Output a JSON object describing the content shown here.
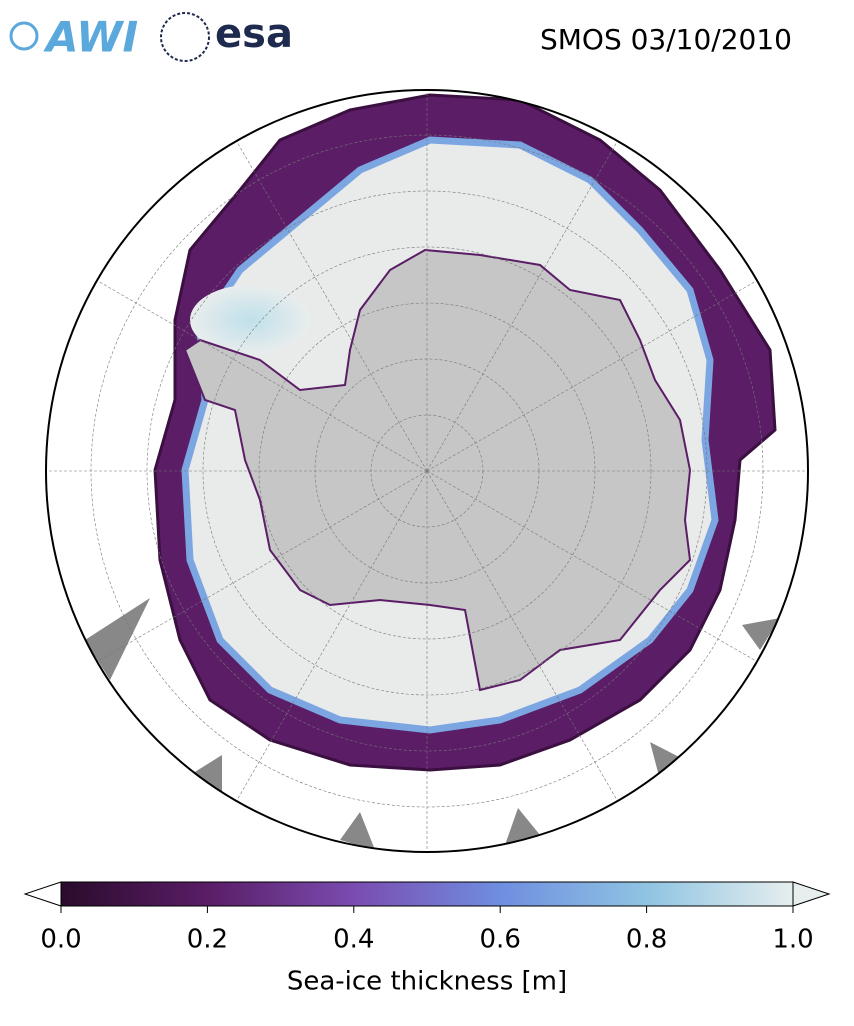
{
  "header": {
    "title": "SMOS 03/10/2010",
    "logos": [
      "AWI",
      "esa"
    ]
  },
  "colorbar": {
    "label": "Sea-ice thickness [m]",
    "lim": [
      0,
      1
    ],
    "ticks": [
      {
        "value": 0,
        "label": "0.0"
      },
      {
        "value": 0.2,
        "label": "0.2"
      },
      {
        "value": 0.4,
        "label": "0.4"
      },
      {
        "value": 0.6,
        "label": "0.6"
      },
      {
        "value": 0.8,
        "label": "0.8"
      },
      {
        "value": 1,
        "label": "1.0"
      }
    ],
    "colors": [
      "#2a0b2c",
      "#5a1d66",
      "#7a4cb0",
      "#6f8ee0",
      "#8fc4e2",
      "#e6eeee"
    ]
  }
}
